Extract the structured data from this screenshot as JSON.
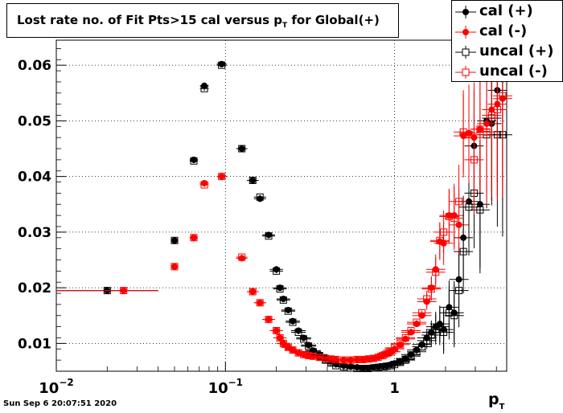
{
  "title": {
    "main": "Lost rate no. of Fit Pts>15 cal versus p",
    "sub": "T",
    "suffix": " for Global(+)"
  },
  "footer": "Sun Sep  6 20:07:51 2020",
  "xaxis_title": {
    "main": "p",
    "sub": "T"
  },
  "colors": {
    "black": "#000000",
    "red": "#ff0000"
  },
  "chart_data": {
    "type": "scatter",
    "xscale": "log",
    "xlim": [
      0.01,
      4.6
    ],
    "ylim": [
      0.005,
      0.0645
    ],
    "grid": true,
    "legend_placement": "top-right",
    "yticks": [
      "0.01",
      "0.02",
      "0.03",
      "0.04",
      "0.05",
      "0.06"
    ],
    "xticks": [
      {
        "value": 0.01,
        "base": "10",
        "exp": "−2"
      },
      {
        "value": 0.1,
        "base": "10",
        "exp": "−1"
      },
      {
        "value": 1,
        "base": "1",
        "exp": ""
      }
    ],
    "series": [
      {
        "name": "cal (+)",
        "color": "#000000",
        "marker": "filled-circle",
        "points": [
          [
            0.02,
            0.0195
          ],
          [
            0.05,
            0.0285
          ],
          [
            0.065,
            0.043
          ],
          [
            0.075,
            0.0563
          ],
          [
            0.095,
            0.0602
          ],
          [
            0.125,
            0.045
          ],
          [
            0.145,
            0.0393
          ],
          [
            0.16,
            0.036
          ],
          [
            0.18,
            0.0295
          ],
          [
            0.2,
            0.0233
          ],
          [
            0.21,
            0.02
          ],
          [
            0.22,
            0.018
          ],
          [
            0.235,
            0.016
          ],
          [
            0.25,
            0.014
          ],
          [
            0.27,
            0.0123
          ],
          [
            0.29,
            0.011
          ],
          [
            0.31,
            0.0097
          ],
          [
            0.33,
            0.0087
          ],
          [
            0.36,
            0.008
          ],
          [
            0.39,
            0.0073
          ],
          [
            0.42,
            0.0068
          ],
          [
            0.45,
            0.0063
          ],
          [
            0.5,
            0.006
          ],
          [
            0.55,
            0.0058
          ],
          [
            0.6,
            0.0057
          ],
          [
            0.65,
            0.0056
          ],
          [
            0.7,
            0.0056
          ],
          [
            0.75,
            0.0057
          ],
          [
            0.8,
            0.0058
          ],
          [
            0.85,
            0.0059
          ],
          [
            0.9,
            0.006
          ],
          [
            0.95,
            0.0062
          ],
          [
            1.0,
            0.0064
          ],
          [
            1.08,
            0.0068
          ],
          [
            1.16,
            0.0073
          ],
          [
            1.25,
            0.008
          ],
          [
            1.35,
            0.0088
          ],
          [
            1.45,
            0.0098
          ],
          [
            1.55,
            0.011
          ],
          [
            1.65,
            0.012
          ],
          [
            1.75,
            0.013
          ],
          [
            1.85,
            0.0135
          ],
          [
            1.95,
            0.0125
          ],
          [
            2.1,
            0.0165
          ],
          [
            2.25,
            0.0155
          ],
          [
            2.4,
            0.0215
          ],
          [
            2.55,
            0.029
          ],
          [
            2.75,
            0.0355
          ],
          [
            2.95,
            0.0455
          ],
          [
            3.2,
            0.035
          ],
          [
            3.5,
            0.05
          ],
          [
            3.75,
            0.0495
          ],
          [
            4.05,
            0.0555
          ],
          [
            4.35,
            0.0575
          ]
        ]
      },
      {
        "name": "cal (-)",
        "color": "#ff0000",
        "marker": "filled-circle",
        "points": [
          [
            0.025,
            0.0195
          ],
          [
            0.05,
            0.0238
          ],
          [
            0.065,
            0.029
          ],
          [
            0.075,
            0.0388
          ],
          [
            0.095,
            0.04
          ],
          [
            0.125,
            0.0253
          ],
          [
            0.145,
            0.0193
          ],
          [
            0.16,
            0.0173
          ],
          [
            0.18,
            0.0143
          ],
          [
            0.2,
            0.0123
          ],
          [
            0.21,
            0.011
          ],
          [
            0.22,
            0.01
          ],
          [
            0.235,
            0.0093
          ],
          [
            0.25,
            0.0088
          ],
          [
            0.27,
            0.0083
          ],
          [
            0.29,
            0.008
          ],
          [
            0.31,
            0.0078
          ],
          [
            0.33,
            0.0077
          ],
          [
            0.36,
            0.0075
          ],
          [
            0.39,
            0.0073
          ],
          [
            0.42,
            0.0072
          ],
          [
            0.45,
            0.0071
          ],
          [
            0.5,
            0.007
          ],
          [
            0.55,
            0.007
          ],
          [
            0.6,
            0.0071
          ],
          [
            0.65,
            0.0071
          ],
          [
            0.7,
            0.0072
          ],
          [
            0.75,
            0.0073
          ],
          [
            0.8,
            0.0075
          ],
          [
            0.85,
            0.0078
          ],
          [
            0.9,
            0.0082
          ],
          [
            0.95,
            0.0085
          ],
          [
            1.0,
            0.009
          ],
          [
            1.08,
            0.0098
          ],
          [
            1.16,
            0.0108
          ],
          [
            1.25,
            0.012
          ],
          [
            1.35,
            0.0135
          ],
          [
            1.45,
            0.015
          ],
          [
            1.55,
            0.0175
          ],
          [
            1.65,
            0.02
          ],
          [
            1.75,
            0.0233
          ],
          [
            1.85,
            0.0283
          ],
          [
            1.95,
            0.028
          ],
          [
            2.1,
            0.033
          ],
          [
            2.25,
            0.033
          ],
          [
            2.4,
            0.0313
          ],
          [
            2.55,
            0.0473
          ],
          [
            2.75,
            0.0478
          ],
          [
            2.95,
            0.047
          ],
          [
            3.2,
            0.0485
          ],
          [
            3.5,
            0.0495
          ],
          [
            3.75,
            0.052
          ],
          [
            4.05,
            0.053
          ],
          [
            4.35,
            0.054
          ]
        ]
      },
      {
        "name": "uncal (+)",
        "color": "#000000",
        "marker": "open-square",
        "points": [
          [
            0.02,
            0.0195
          ],
          [
            0.05,
            0.0285
          ],
          [
            0.065,
            0.0428
          ],
          [
            0.075,
            0.0558
          ],
          [
            0.095,
            0.06
          ],
          [
            0.125,
            0.045
          ],
          [
            0.145,
            0.0393
          ],
          [
            0.16,
            0.0363
          ],
          [
            0.18,
            0.0293
          ],
          [
            0.2,
            0.023
          ],
          [
            0.21,
            0.0198
          ],
          [
            0.22,
            0.0178
          ],
          [
            0.235,
            0.0158
          ],
          [
            0.25,
            0.0138
          ],
          [
            0.27,
            0.012
          ],
          [
            0.29,
            0.0108
          ],
          [
            0.31,
            0.0095
          ],
          [
            0.33,
            0.0085
          ],
          [
            0.36,
            0.0078
          ],
          [
            0.39,
            0.007
          ],
          [
            0.42,
            0.0065
          ],
          [
            0.45,
            0.006
          ],
          [
            0.5,
            0.0058
          ],
          [
            0.55,
            0.0056
          ],
          [
            0.6,
            0.0055
          ],
          [
            0.65,
            0.0055
          ],
          [
            0.7,
            0.0055
          ],
          [
            0.75,
            0.0056
          ],
          [
            0.8,
            0.0057
          ],
          [
            0.85,
            0.0058
          ],
          [
            0.9,
            0.0059
          ],
          [
            0.95,
            0.006
          ],
          [
            1.0,
            0.0062
          ],
          [
            1.08,
            0.0066
          ],
          [
            1.16,
            0.007
          ],
          [
            1.25,
            0.0077
          ],
          [
            1.35,
            0.0085
          ],
          [
            1.45,
            0.0094
          ],
          [
            1.55,
            0.0105
          ],
          [
            1.65,
            0.0115
          ],
          [
            1.75,
            0.0125
          ],
          [
            1.85,
            0.013
          ],
          [
            1.95,
            0.012
          ],
          [
            2.1,
            0.0155
          ],
          [
            2.25,
            0.015
          ],
          [
            2.4,
            0.0195
          ],
          [
            2.55,
            0.0265
          ],
          [
            2.75,
            0.0345
          ],
          [
            2.95,
            0.037
          ],
          [
            3.2,
            0.034
          ],
          [
            3.5,
            0.0475
          ],
          [
            3.75,
            0.0505
          ],
          [
            4.05,
            0.0475
          ],
          [
            4.35,
            0.0475
          ]
        ]
      },
      {
        "name": "uncal (-)",
        "color": "#ff0000",
        "marker": "open-square",
        "points": [
          [
            0.025,
            0.0195
          ],
          [
            0.05,
            0.0238
          ],
          [
            0.065,
            0.029
          ],
          [
            0.075,
            0.0385
          ],
          [
            0.095,
            0.04
          ],
          [
            0.125,
            0.0255
          ],
          [
            0.145,
            0.0193
          ],
          [
            0.16,
            0.0173
          ],
          [
            0.18,
            0.0143
          ],
          [
            0.2,
            0.0123
          ],
          [
            0.21,
            0.011
          ],
          [
            0.22,
            0.01
          ],
          [
            0.235,
            0.0093
          ],
          [
            0.25,
            0.0088
          ],
          [
            0.27,
            0.0083
          ],
          [
            0.29,
            0.008
          ],
          [
            0.31,
            0.0078
          ],
          [
            0.33,
            0.0077
          ],
          [
            0.36,
            0.0075
          ],
          [
            0.39,
            0.0073
          ],
          [
            0.42,
            0.0072
          ],
          [
            0.45,
            0.0071
          ],
          [
            0.5,
            0.007
          ],
          [
            0.55,
            0.007
          ],
          [
            0.6,
            0.0071
          ],
          [
            0.65,
            0.0071
          ],
          [
            0.7,
            0.0072
          ],
          [
            0.75,
            0.0073
          ],
          [
            0.8,
            0.0075
          ],
          [
            0.85,
            0.0078
          ],
          [
            0.9,
            0.0082
          ],
          [
            0.95,
            0.0085
          ],
          [
            1.0,
            0.0092
          ],
          [
            1.08,
            0.01
          ],
          [
            1.16,
            0.011
          ],
          [
            1.25,
            0.0123
          ],
          [
            1.35,
            0.0138
          ],
          [
            1.45,
            0.0155
          ],
          [
            1.55,
            0.018
          ],
          [
            1.65,
            0.0198
          ],
          [
            1.75,
            0.0228
          ],
          [
            1.85,
            0.0285
          ],
          [
            1.95,
            0.03
          ],
          [
            2.1,
            0.0328
          ],
          [
            2.25,
            0.0325
          ],
          [
            2.4,
            0.0355
          ],
          [
            2.55,
            0.048
          ],
          [
            2.75,
            0.0475
          ],
          [
            2.95,
            0.043
          ],
          [
            3.2,
            0.0485
          ],
          [
            3.5,
            0.048
          ],
          [
            3.75,
            0.051
          ],
          [
            4.05,
            0.052
          ],
          [
            4.35,
            0.0545
          ]
        ]
      }
    ]
  }
}
